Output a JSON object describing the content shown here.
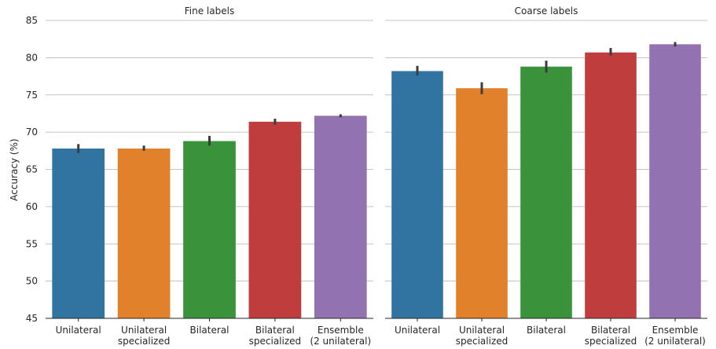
{
  "chart_data": {
    "type": "bar",
    "ylabel": "Accuracy (%)",
    "ylim": [
      45,
      85
    ],
    "yticks": [
      45,
      50,
      55,
      60,
      65,
      70,
      75,
      80,
      85
    ],
    "grid": "horizontal",
    "shared_y": true,
    "colors": [
      "#3274a1",
      "#e1812c",
      "#3a923a",
      "#c03d3e",
      "#9372b2"
    ],
    "categories": [
      [
        "Unilateral"
      ],
      [
        "Unilateral",
        "specialized"
      ],
      [
        "Bilateral"
      ],
      [
        "Bilateral",
        "specialized"
      ],
      [
        "Ensemble",
        "(2 unilateral)"
      ]
    ],
    "panels": [
      {
        "title": "Fine labels",
        "values": [
          67.8,
          67.8,
          68.8,
          71.4,
          72.2
        ],
        "error_low": [
          67.2,
          67.5,
          68.2,
          71.0,
          72.0
        ],
        "error_high": [
          68.4,
          68.2,
          69.5,
          71.8,
          72.4
        ]
      },
      {
        "title": "Coarse labels",
        "values": [
          78.2,
          75.9,
          78.8,
          80.7,
          81.8
        ],
        "error_low": [
          77.6,
          75.1,
          78.0,
          80.3,
          81.5
        ],
        "error_high": [
          78.9,
          76.7,
          79.6,
          81.3,
          82.1
        ]
      }
    ]
  }
}
